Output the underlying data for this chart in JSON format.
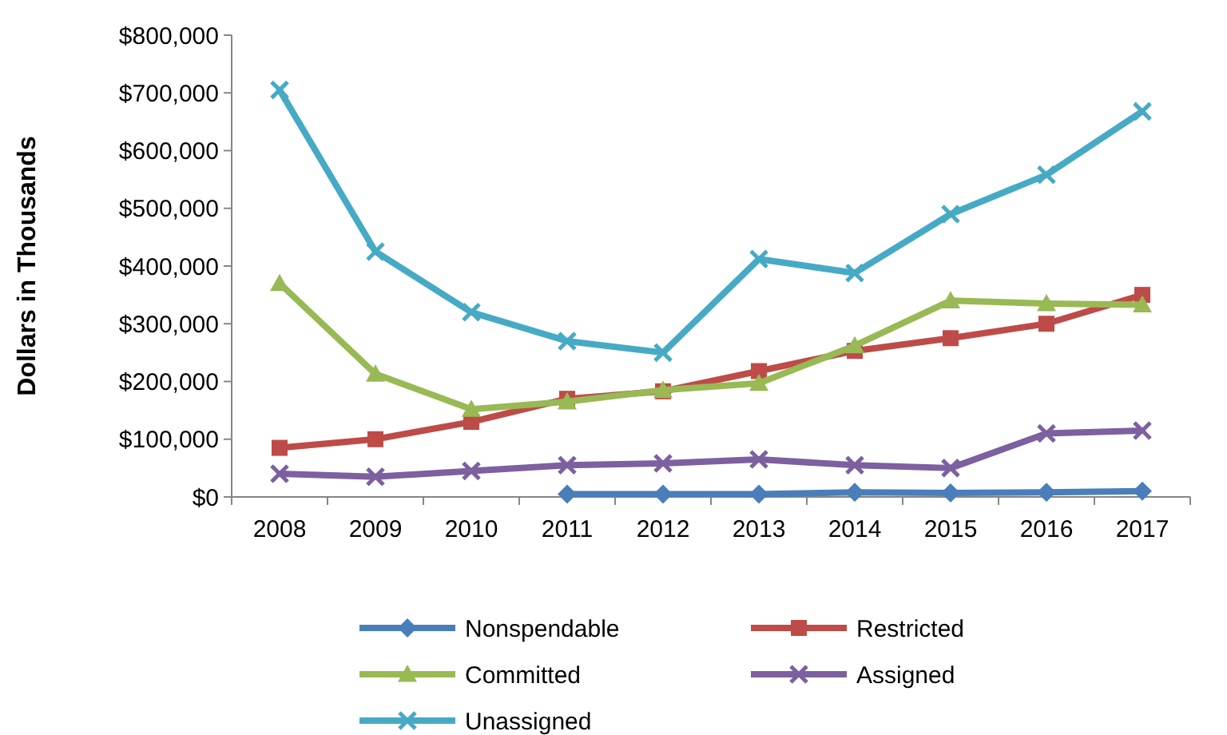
{
  "chart_data": {
    "type": "line",
    "ylabel": "Dollars in Thousands",
    "categories": [
      "2008",
      "2009",
      "2010",
      "2011",
      "2012",
      "2013",
      "2014",
      "2015",
      "2016",
      "2017"
    ],
    "ylim": [
      0,
      800000
    ],
    "yticks": [
      {
        "value": 0,
        "label": "$0"
      },
      {
        "value": 100000,
        "label": "$100,000"
      },
      {
        "value": 200000,
        "label": "$200,000"
      },
      {
        "value": 300000,
        "label": "$300,000"
      },
      {
        "value": 400000,
        "label": "$400,000"
      },
      {
        "value": 500000,
        "label": "$500,000"
      },
      {
        "value": 600000,
        "label": "$600,000"
      },
      {
        "value": 700000,
        "label": "$700,000"
      },
      {
        "value": 800000,
        "label": "$800,000"
      }
    ],
    "grid": false,
    "legend": "bottom",
    "line_style": "solid",
    "series": [
      {
        "name": "Nonspendable",
        "color": "#4a7ebb",
        "marker": "diamond",
        "values": [
          null,
          null,
          null,
          5000,
          5000,
          5000,
          8000,
          7000,
          8000,
          10000
        ]
      },
      {
        "name": "Restricted",
        "color": "#be4b48",
        "marker": "square",
        "values": [
          85000,
          100000,
          130000,
          170000,
          183000,
          218000,
          253000,
          275000,
          300000,
          350000
        ]
      },
      {
        "name": "Committed",
        "color": "#98b954",
        "marker": "triangle",
        "values": [
          370000,
          213000,
          152000,
          165000,
          185000,
          197000,
          262000,
          340000,
          335000,
          333000
        ]
      },
      {
        "name": "Assigned",
        "color": "#7d60a0",
        "marker": "cross",
        "values": [
          40000,
          35000,
          45000,
          55000,
          58000,
          65000,
          55000,
          50000,
          110000,
          115000
        ]
      },
      {
        "name": "Unassigned",
        "color": "#46aac5",
        "marker": "cross",
        "values": [
          705000,
          425000,
          320000,
          270000,
          250000,
          412000,
          388000,
          490000,
          558000,
          668000
        ]
      }
    ]
  }
}
